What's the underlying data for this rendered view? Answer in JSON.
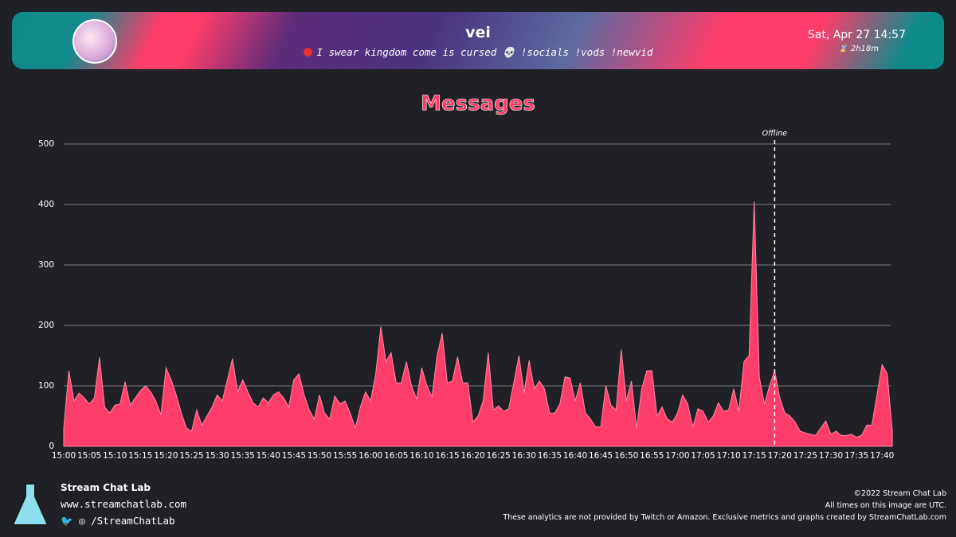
{
  "header": {
    "channel": "vei",
    "stream_title": "I swear kingdom come is cursed 💀 !socials !vods !newvid",
    "date": "Sat, Apr 27 14:57",
    "duration": "2h18m"
  },
  "chart_data": {
    "type": "area",
    "title": "Messages",
    "color": "#ff3d6b",
    "grid": true,
    "categories": [
      "15:00",
      null,
      null,
      null,
      null,
      "15:05",
      null,
      null,
      null,
      null,
      "15:10",
      null,
      null,
      null,
      null,
      "15:15",
      null,
      null,
      null,
      null,
      "15:20",
      null,
      null,
      null,
      null,
      "15:25",
      null,
      null,
      null,
      null,
      "15:30",
      null,
      null,
      null,
      null,
      "15:35",
      null,
      null,
      null,
      null,
      "15:40",
      null,
      null,
      null,
      null,
      "15:45",
      null,
      null,
      null,
      null,
      "15:50",
      null,
      null,
      null,
      null,
      "15:55",
      null,
      null,
      null,
      null,
      "16:00",
      null,
      null,
      null,
      null,
      "16:05",
      null,
      null,
      null,
      null,
      "16:10",
      null,
      null,
      null,
      null,
      "16:15",
      null,
      null,
      null,
      null,
      "16:20",
      null,
      null,
      null,
      null,
      "16:25",
      null,
      null,
      null,
      null,
      "16:30",
      null,
      null,
      null,
      null,
      "16:35",
      null,
      null,
      null,
      null,
      "16:40",
      null,
      null,
      null,
      null,
      "16:45",
      null,
      null,
      null,
      null,
      "16:50",
      null,
      null,
      null,
      null,
      "16:55",
      null,
      null,
      null,
      null,
      "17:00",
      null,
      null,
      null,
      null,
      "17:05",
      null,
      null,
      null,
      null,
      "17:10",
      null,
      null,
      null,
      null,
      "17:15",
      null,
      null,
      null,
      null,
      "17:20",
      null,
      null,
      null,
      null,
      "17:25",
      null,
      null,
      null,
      null,
      "17:30",
      null,
      null,
      null,
      null,
      "17:35",
      null,
      null,
      null,
      null,
      "17:40",
      null,
      null
    ],
    "values": [
      30,
      125,
      75,
      88,
      80,
      70,
      80,
      147,
      65,
      55,
      68,
      70,
      107,
      68,
      80,
      92,
      100,
      90,
      75,
      52,
      130,
      110,
      85,
      55,
      30,
      25,
      60,
      35,
      50,
      65,
      85,
      75,
      110,
      145,
      90,
      110,
      90,
      72,
      65,
      80,
      72,
      85,
      90,
      80,
      65,
      110,
      120,
      85,
      60,
      45,
      85,
      55,
      45,
      83,
      70,
      75,
      55,
      30,
      65,
      90,
      75,
      120,
      198,
      140,
      155,
      105,
      105,
      140,
      100,
      78,
      130,
      100,
      82,
      150,
      187,
      105,
      108,
      148,
      105,
      105,
      40,
      50,
      75,
      155,
      60,
      67,
      58,
      62,
      105,
      150,
      88,
      142,
      95,
      108,
      95,
      55,
      55,
      70,
      115,
      113,
      75,
      105,
      55,
      45,
      32,
      32,
      100,
      68,
      60,
      160,
      75,
      108,
      30,
      95,
      125,
      125,
      50,
      65,
      45,
      40,
      55,
      85,
      70,
      32,
      62,
      58,
      40,
      50,
      72,
      58,
      60,
      95,
      58,
      140,
      150,
      405,
      115,
      70,
      100,
      125,
      80,
      55,
      50,
      40,
      25,
      22,
      20,
      18,
      30,
      42,
      20,
      25,
      18,
      18,
      20,
      15,
      18,
      35,
      35,
      85,
      135,
      120,
      25
    ],
    "ylim": [
      0,
      500
    ],
    "yticks": [
      0,
      100,
      200,
      300,
      400,
      500
    ],
    "annotation": "Offline"
  },
  "footer": {
    "brand": "Stream Chat Lab",
    "url": "www.streamchatlab.com",
    "social": "/StreamChatLab",
    "copyright": "©2022 Stream Chat Lab",
    "timezone_note": "All times on this image are UTC.",
    "disclaimer": "These analytics are not provided by Twitch or Amazon. Exclusive metrics and graphs created by StreamChatLab.com"
  }
}
